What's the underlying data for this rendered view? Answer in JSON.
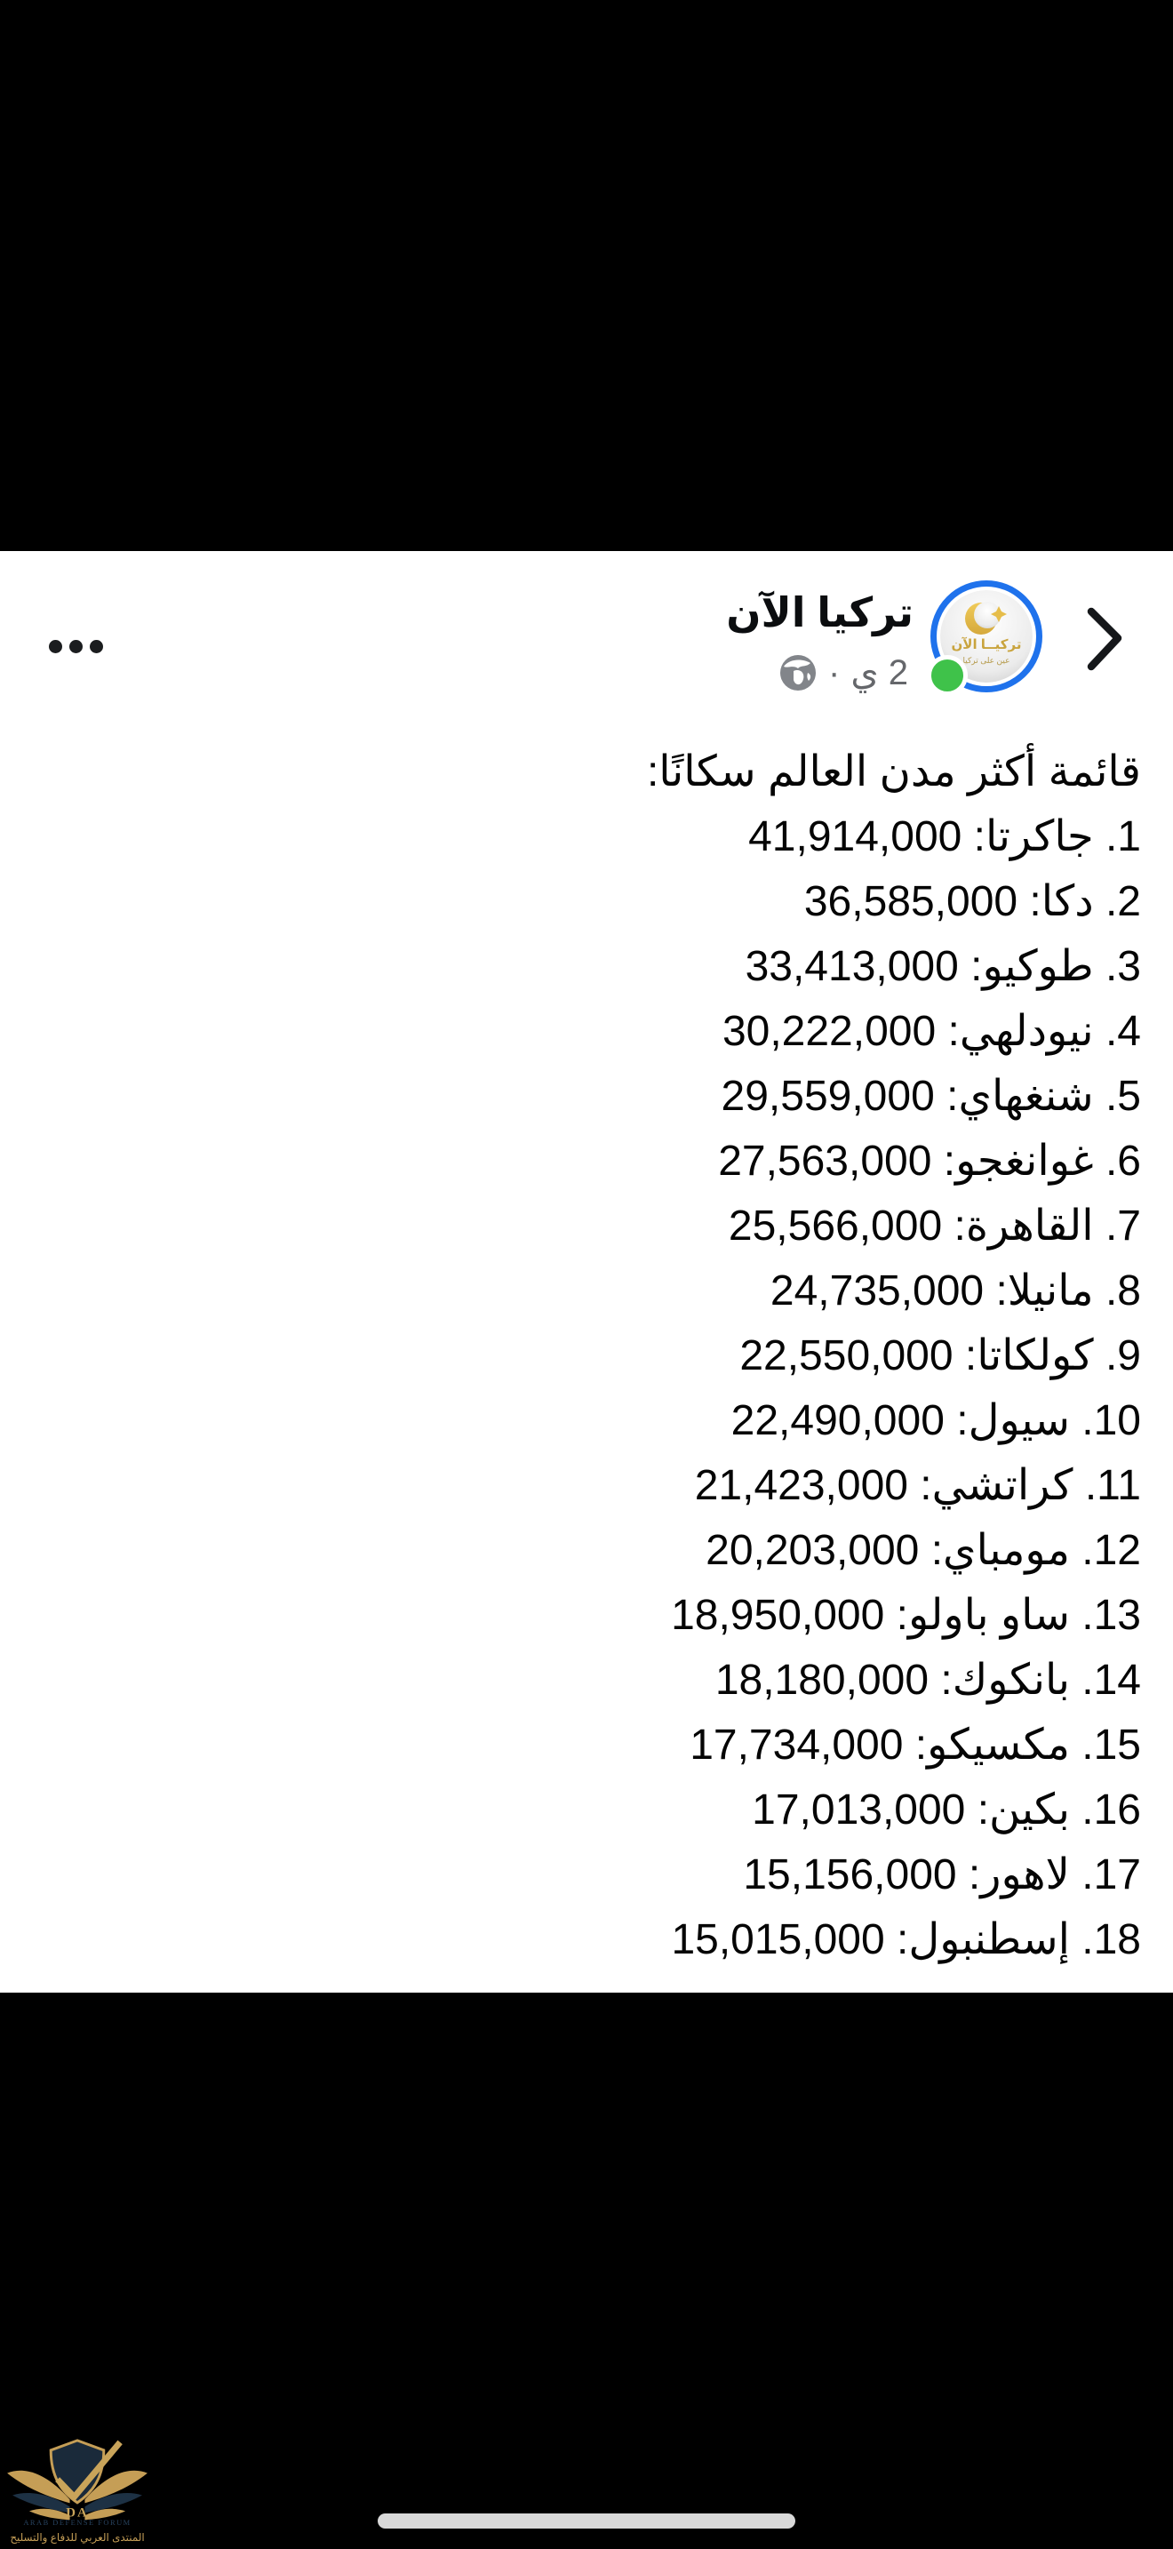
{
  "post": {
    "author": "تركيا الآن",
    "timestamp": "2 ي",
    "separator": "·",
    "privacy_icon": "globe-public",
    "title": "قائمة أكثر مدن العالم سكانًا:",
    "cities": [
      {
        "city": "جاكرتا",
        "population": "41,914,000"
      },
      {
        "city": "دكا",
        "population": "36,585,000"
      },
      {
        "city": "طوكيو",
        "population": "33,413,000"
      },
      {
        "city": "نيودلهي",
        "population": "30,222,000"
      },
      {
        "city": "شنغهاي",
        "population": "29,559,000"
      },
      {
        "city": "غوانغجو",
        "population": "27,563,000"
      },
      {
        "city": "القاهرة",
        "population": "25,566,000"
      },
      {
        "city": "مانيلا",
        "population": "24,735,000"
      },
      {
        "city": "كولكاتا",
        "population": "22,550,000"
      },
      {
        "city": "سيول",
        "population": "22,490,000"
      },
      {
        "city": "كراتشي",
        "population": "21,423,000"
      },
      {
        "city": "مومباي",
        "population": "20,203,000"
      },
      {
        "city": "ساو باولو",
        "population": "18,950,000"
      },
      {
        "city": "بانكوك",
        "population": "18,180,000"
      },
      {
        "city": "مكسيكو",
        "population": "17,734,000"
      },
      {
        "city": "بكين",
        "population": "17,013,000"
      },
      {
        "city": "لاهور",
        "population": "15,156,000"
      },
      {
        "city": "إسطنبول",
        "population": "15,015,000"
      }
    ]
  },
  "avatar": {
    "logo_line1": "تركيــا الآن",
    "logo_line2": "عين على تركيا"
  },
  "watermark": {
    "monogram": "DA",
    "english": "ARAB DEFENSE FORUM",
    "arabic": "المنتدى العربي للدفاع والتسليح"
  },
  "colors": {
    "story_ring_blue": "#1f72ec",
    "online_green": "#3fc24a",
    "meta_gray": "#65676b",
    "text_black": "#050505",
    "watermark_gold": "#c59e56",
    "watermark_navy": "#27425e",
    "home_indicator_gray": "#d9d9d9"
  }
}
